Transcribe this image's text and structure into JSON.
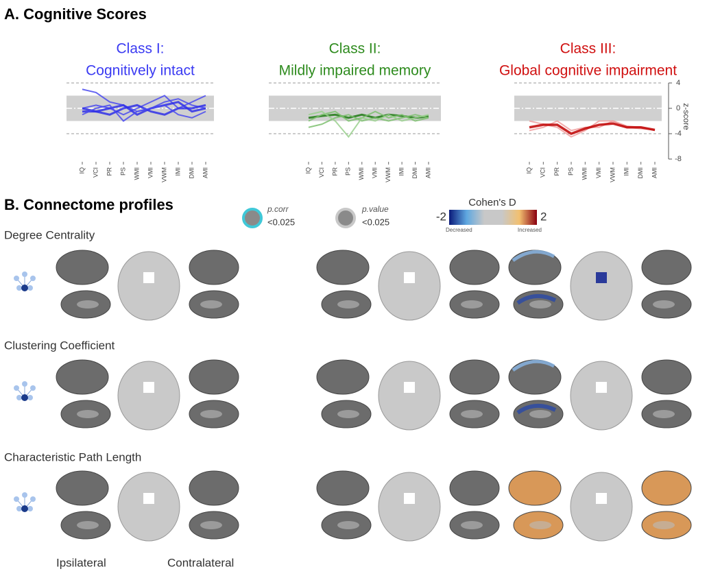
{
  "panel_a_title": "A. Cognitive Scores",
  "chart_data": [
    {
      "type": "line",
      "title": "Class I:",
      "subtitle": "Cognitively intact",
      "title_color": "#3a3af2",
      "categories": [
        "IQ",
        "VCI",
        "PR",
        "PS",
        "WMI",
        "VMI",
        "VWM",
        "IMI",
        "DMI",
        "AMI"
      ],
      "ylim": [
        -8,
        4
      ],
      "band": [
        -2,
        2
      ],
      "ref_lines": [
        -4,
        4
      ],
      "series": [
        {
          "color": "#4a4af0",
          "width": 2,
          "values": [
            3,
            2.5,
            1,
            0.5,
            -0.5,
            0,
            1,
            1.5,
            0.5,
            0
          ]
        },
        {
          "color": "#4a4af0",
          "width": 2,
          "values": [
            0,
            0.5,
            0,
            -1,
            0,
            1,
            2,
            0,
            1,
            2
          ]
        },
        {
          "color": "#3030e8",
          "width": 3,
          "values": [
            -0.5,
            -0.5,
            0,
            0.5,
            -1,
            0,
            0.5,
            1,
            -0.5,
            0
          ]
        },
        {
          "color": "#3030e8",
          "width": 3,
          "values": [
            0,
            -0.5,
            -1,
            0,
            0.5,
            -0.5,
            -1,
            0,
            0,
            0.5
          ]
        },
        {
          "color": "#4a4af0",
          "width": 2,
          "values": [
            -1,
            0,
            0.5,
            -2,
            -0.5,
            0,
            0.5,
            -1,
            -1.5,
            -0.5
          ]
        }
      ]
    },
    {
      "type": "line",
      "title": "Class II:",
      "subtitle": "Mildly impaired memory",
      "title_color": "#2e8b1e",
      "categories": [
        "IQ",
        "VCI",
        "PR",
        "PS",
        "WMI",
        "VMI",
        "VWM",
        "IMI",
        "DMI",
        "AMI"
      ],
      "ylim": [
        -8,
        4
      ],
      "band": [
        -2,
        2
      ],
      "ref_lines": [
        -4,
        4
      ],
      "series": [
        {
          "color": "#1e7a14",
          "width": 3,
          "values": [
            -1.5,
            -1.2,
            -1,
            -1.5,
            -1,
            -1.5,
            -1,
            -1.2,
            -1.5,
            -1.3
          ]
        },
        {
          "color": "#7cc06e",
          "width": 2,
          "values": [
            -2,
            -1,
            -0.5,
            -2,
            -1.5,
            -0.5,
            -1.5,
            -1,
            -2,
            -1.5
          ]
        },
        {
          "color": "#7cc06e",
          "width": 2,
          "values": [
            -3,
            -2.5,
            -1.5,
            -1,
            -2,
            -1.5,
            -2,
            -1.5,
            -1,
            -1.5
          ]
        },
        {
          "color": "#9ad08e",
          "width": 2,
          "values": [
            -1,
            -0.5,
            -2,
            -4.5,
            -1.5,
            -2,
            -1,
            -2,
            -1.5,
            -1
          ]
        }
      ]
    },
    {
      "type": "line",
      "title": "Class III:",
      "subtitle": "Global cognitive impairment",
      "title_color": "#d01010",
      "categories": [
        "IQ",
        "VCI",
        "PR",
        "PS",
        "WMI",
        "VMI",
        "VWM",
        "IMI",
        "DMI",
        "AMI"
      ],
      "ylim": [
        -8,
        4
      ],
      "yticks": [
        4,
        0,
        -4,
        -8
      ],
      "ylabel": "z-score",
      "band": [
        -2,
        2
      ],
      "ref_lines": [
        -4,
        4
      ],
      "series": [
        {
          "color": "#f0a0a0",
          "width": 2,
          "values": [
            -2,
            -2.5,
            -3,
            -4.5,
            -3.5,
            -2,
            -2,
            -3,
            -3.2,
            -3.4
          ]
        },
        {
          "color": "#f0a0a0",
          "width": 2,
          "values": [
            -3.5,
            -3,
            -2,
            -3.5,
            -3,
            -3,
            -2,
            -2.8,
            -3,
            -3.5
          ]
        },
        {
          "color": "#c00000",
          "width": 3.5,
          "values": [
            -3,
            -2.6,
            -2.6,
            -4,
            -3.2,
            -2.6,
            -2.4,
            -3,
            -3,
            -3.4
          ]
        }
      ]
    }
  ],
  "panel_b_title": "B. Connectome profiles",
  "legend": {
    "pcorr_label": "p.corr",
    "pcorr_threshold": "<0.025",
    "pvalue_label": "p.value",
    "pvalue_threshold": "<0.025",
    "colorbar_title": "Cohen's D",
    "colorbar_min": -2,
    "colorbar_max": 2,
    "decreased": "Decreased",
    "increased": "Increased"
  },
  "rows": [
    "Degree  Centrality",
    "Clustering Coefficient",
    "Characteristic Path Length"
  ],
  "footer": {
    "left": "Ipsilateral",
    "right": "Contralateral"
  }
}
